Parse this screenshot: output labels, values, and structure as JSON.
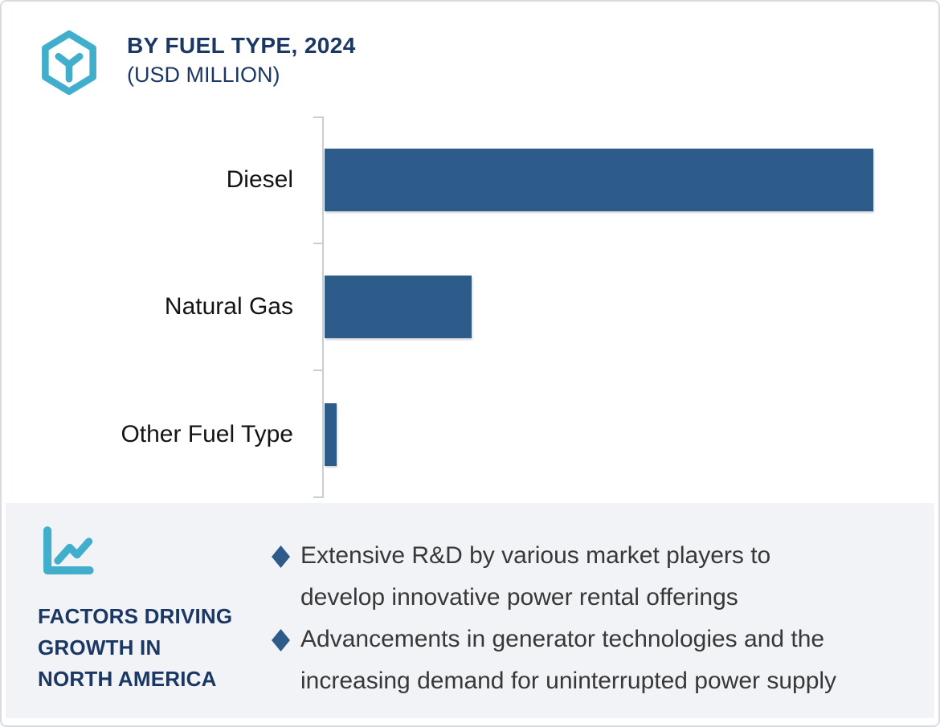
{
  "header": {
    "title": "BY FUEL TYPE, 2024",
    "subtitle": "(USD MILLION)",
    "logo_icon": "hexagon-y-logo-icon"
  },
  "chart_data": {
    "type": "bar",
    "orientation": "horizontal",
    "title": "BY FUEL TYPE, 2024",
    "subtitle": "(USD MILLION)",
    "unit": "USD Million",
    "categories": [
      "Diesel",
      "Natural Gas",
      "Other Fuel Type"
    ],
    "values": [
      100,
      26.8,
      2.2
    ],
    "values_note": "Bars carry no printed numbers; values are estimated relative lengths as percent of the longest bar (Diesel = 100).",
    "value_labels_shown": false,
    "gridlines": false,
    "bar_color": "#2e5c8a",
    "axis_color": "#c9ccd2",
    "legend": null
  },
  "panel": {
    "icon": "line-chart-icon",
    "heading_lines": [
      "FACTORS DRIVING",
      "GROWTH IN",
      "NORTH AMERICA"
    ],
    "bullet_marker": "diamond",
    "bullets": [
      {
        "lines": [
          "Extensive R&D by various market players to",
          "develop innovative power rental offerings"
        ]
      },
      {
        "lines": [
          "Advancements in generator technologies and the",
          "increasing demand for uninterrupted power supply"
        ]
      }
    ],
    "background": "#f2f3f7"
  },
  "colors": {
    "accent_teal": "#41afcc",
    "navy": "#1b3764",
    "bar_blue": "#2e5c8a",
    "body_text": "#383838",
    "panel_bg": "#f2f3f7",
    "card_border": "#d8dbe1",
    "axis_gray": "#c9ccd2"
  }
}
